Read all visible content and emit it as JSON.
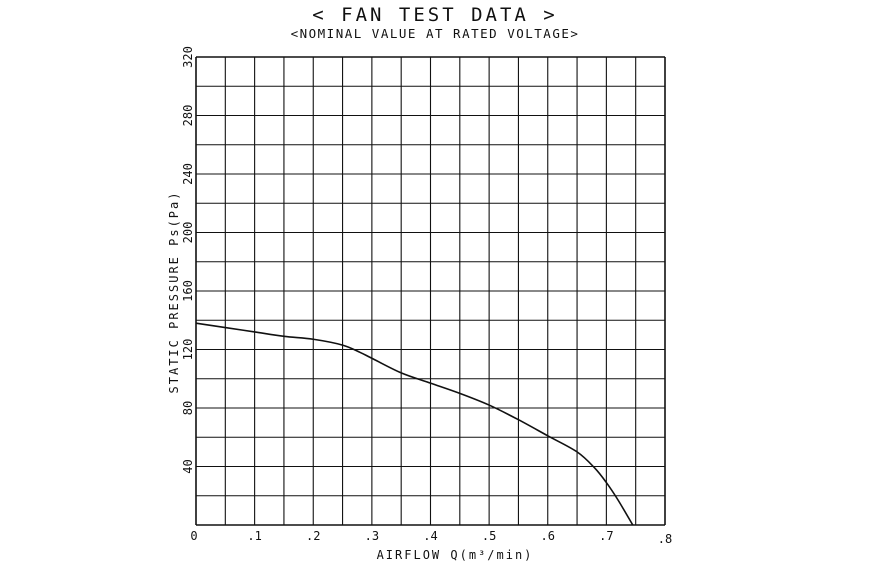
{
  "header": {
    "title": "< FAN TEST DATA >",
    "subtitle": "<NOMINAL VALUE AT RATED VOLTAGE>"
  },
  "chart_data": {
    "type": "line",
    "title": "< FAN TEST DATA >",
    "subtitle": "<NOMINAL VALUE AT RATED VOLTAGE>",
    "xlabel": "AIRFLOW Q(m³/min)",
    "ylabel": "STATIC PRESSURE Ps(Pa)",
    "xlim": [
      0,
      0.8
    ],
    "ylim": [
      0,
      320
    ],
    "x_ticks": [
      0,
      0.1,
      0.2,
      0.3,
      0.4,
      0.5,
      0.6,
      0.7,
      0.8
    ],
    "x_tick_labels": [
      "0",
      ".1",
      ".2",
      ".3",
      ".4",
      ".5",
      ".6",
      ".7",
      ".8"
    ],
    "y_ticks": [
      40,
      80,
      120,
      160,
      200,
      240,
      280,
      320
    ],
    "y_tick_labels": [
      "40",
      "80",
      "120",
      "160",
      "200",
      "240",
      "280",
      "320"
    ],
    "grid": true,
    "grid_x_step": 0.05,
    "grid_y_step": 20,
    "series": [
      {
        "x": [
          0,
          0.05,
          0.1,
          0.15,
          0.2,
          0.25,
          0.28,
          0.3,
          0.35,
          0.4,
          0.45,
          0.5,
          0.55,
          0.6,
          0.65,
          0.68,
          0.7,
          0.72,
          0.745
        ],
        "y": [
          138,
          135,
          132,
          129,
          127,
          123,
          118,
          114,
          104,
          97,
          90,
          82,
          72,
          61,
          50,
          39,
          29,
          17,
          0
        ]
      }
    ],
    "line_color": "#111111"
  }
}
